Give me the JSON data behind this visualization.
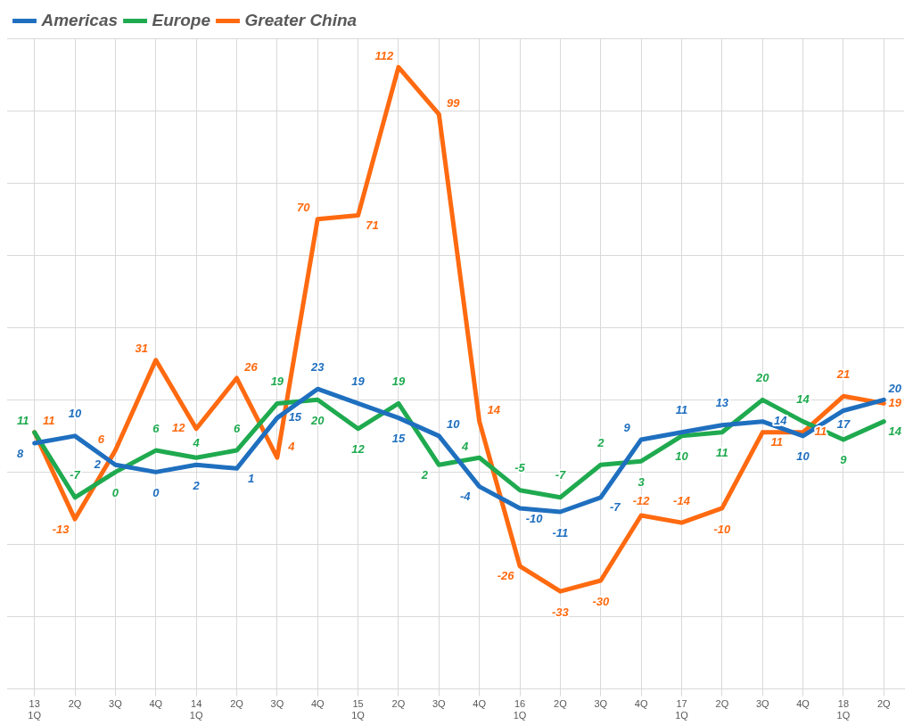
{
  "chart_data": {
    "type": "line",
    "categories": [
      "13\n1Q",
      "2Q",
      "3Q",
      "4Q",
      "14\n1Q",
      "2Q",
      "3Q",
      "4Q",
      "15\n1Q",
      "2Q",
      "3Q",
      "4Q",
      "16\n1Q",
      "2Q",
      "3Q",
      "4Q",
      "17\n1Q",
      "2Q",
      "3Q",
      "4Q",
      "18\n1Q",
      "2Q"
    ],
    "series": [
      {
        "name": "Americas",
        "color": "#1f6fbf",
        "values": [
          8,
          10,
          2,
          0,
          2,
          1,
          15,
          23,
          19,
          15,
          10,
          -4,
          -10,
          -11,
          -7,
          9,
          11,
          13,
          14,
          10,
          17,
          20
        ]
      },
      {
        "name": "Europe",
        "color": "#1faa4f",
        "values": [
          11,
          -7,
          0,
          6,
          4,
          6,
          19,
          20,
          12,
          19,
          2,
          4,
          -5,
          -7,
          2,
          3,
          10,
          11,
          20,
          14,
          9,
          14
        ]
      },
      {
        "name": "Greater China",
        "color": "#ff6a10",
        "values": [
          11,
          -13,
          6,
          31,
          12,
          26,
          4,
          70,
          71,
          112,
          99,
          14,
          -26,
          -33,
          -30,
          -12,
          -14,
          -10,
          11,
          11,
          21,
          19
        ]
      }
    ],
    "ylim": [
      -60,
      120
    ],
    "yticks": [
      {
        "value": -60,
        "label": null
      },
      {
        "value": -40,
        "label": null
      },
      {
        "value": -20,
        "label": null
      },
      {
        "value": 0,
        "label": null
      },
      {
        "value": 20,
        "label": null
      },
      {
        "value": 40,
        "label": null
      },
      {
        "value": 60,
        "label": null
      },
      {
        "value": 80,
        "label": null
      },
      {
        "value": 100,
        "label": null
      },
      {
        "value": 120,
        "label": null
      }
    ],
    "tick_labels": "x",
    "grid": true,
    "legend": "top left",
    "marker": "none",
    "line_style": "solid",
    "data_labels": true
  }
}
